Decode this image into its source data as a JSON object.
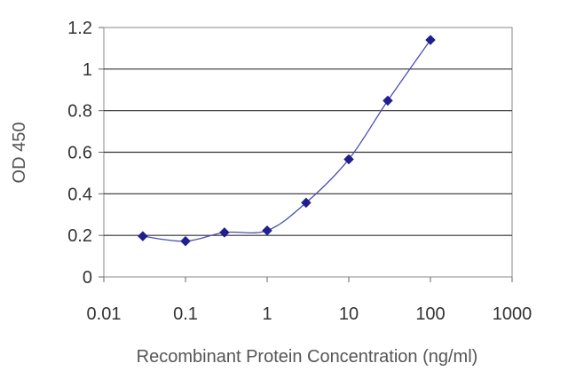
{
  "chart_data": {
    "type": "scatter",
    "title": "",
    "xlabel": "Recombinant Protein Concentration (ng/ml)",
    "ylabel": "OD 450",
    "x_scale": "log",
    "xlim": [
      0.01,
      1000
    ],
    "ylim": [
      0,
      1.2
    ],
    "x_ticks": [
      "0.01",
      "0.1",
      "1",
      "10",
      "100",
      "1000"
    ],
    "y_ticks": [
      "0",
      "0.2",
      "0.4",
      "0.6",
      "0.8",
      "1",
      "1.2"
    ],
    "grid": "horizontal",
    "legend": "none",
    "series": [
      {
        "x": [
          0.03,
          0.1,
          0.3,
          1,
          3,
          10,
          30,
          100
        ],
        "y": [
          0.196,
          0.172,
          0.214,
          0.223,
          0.357,
          0.566,
          0.848,
          1.14
        ],
        "marker": "diamond",
        "color": "#1f1f8f",
        "fit_line": true
      }
    ]
  }
}
